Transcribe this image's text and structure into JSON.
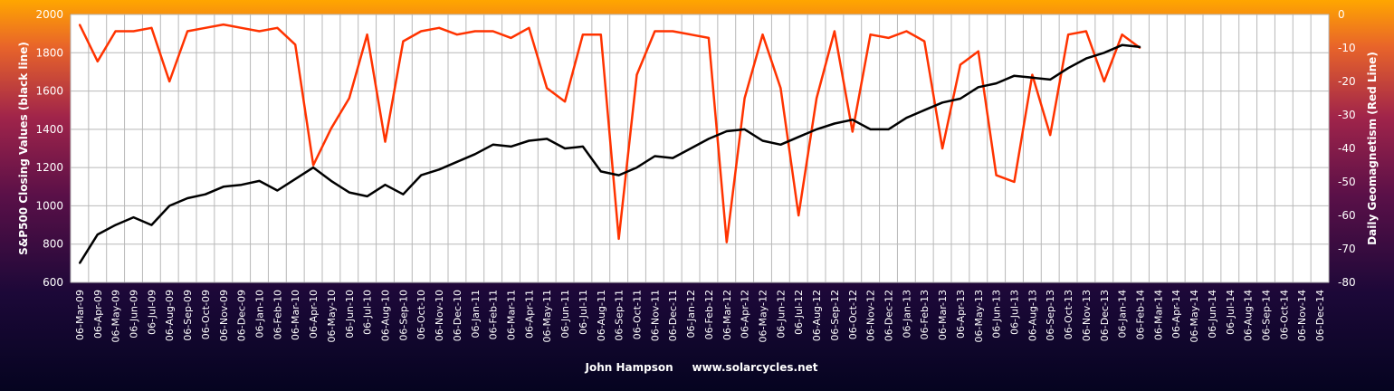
{
  "chart_data": {
    "type": "line",
    "title": "",
    "xlabel": "John Hampson     www.solarcycles.net",
    "ylabel": "S&P500 Closing Values (black line)",
    "y2label": "Daily Geomagnetism (Red Line)",
    "ylim": [
      600,
      2000
    ],
    "y_ticks": [
      600,
      800,
      1000,
      1200,
      1400,
      1600,
      1800,
      2000
    ],
    "y2lim": [
      -80,
      0
    ],
    "y2_ticks": [
      -80,
      -70,
      -60,
      -50,
      -40,
      -30,
      -20,
      -10,
      0
    ],
    "grid": true,
    "legend": "none",
    "x_categories": [
      "06-Mar-09",
      "06-Apr-09",
      "06-May-09",
      "06-Jun-09",
      "06-Jul-09",
      "06-Aug-09",
      "06-Sep-09",
      "06-Oct-09",
      "06-Nov-09",
      "06-Dec-09",
      "06-Jan-10",
      "06-Feb-10",
      "06-Mar-10",
      "06-Apr-10",
      "06-May-10",
      "06-Jun-10",
      "06-Jul-10",
      "06-Aug-10",
      "06-Sep-10",
      "06-Oct-10",
      "06-Nov-10",
      "06-Dec-10",
      "06-Jan-11",
      "06-Feb-11",
      "06-Mar-11",
      "06-Apr-11",
      "06-May-11",
      "06-Jun-11",
      "06-Jul-11",
      "06-Aug-11",
      "06-Sep-11",
      "06-Oct-11",
      "06-Nov-11",
      "06-Dec-11",
      "06-Jan-12",
      "06-Feb-12",
      "06-Mar-12",
      "06-Apr-12",
      "06-May-12",
      "06-Jun-12",
      "06-Jul-12",
      "06-Aug-12",
      "06-Sep-12",
      "06-Oct-12",
      "06-Nov-12",
      "06-Dec-12",
      "06-Jan-13",
      "06-Feb-13",
      "06-Mar-13",
      "06-Apr-13",
      "06-May-13",
      "06-Jun-13",
      "06-Jul-13",
      "06-Aug-13",
      "06-Sep-13",
      "06-Oct-13",
      "06-Nov-13",
      "06-Dec-13",
      "06-Jan-14",
      "06-Feb-14",
      "06-Mar-14",
      "06-Apr-14",
      "06-May-14",
      "06-Jun-14",
      "06-Jul-14",
      "06-Aug-14",
      "06-Sep-14",
      "06-Oct-14",
      "06-Nov-14",
      "06-Dec-14"
    ],
    "series": [
      {
        "axis": "left",
        "color": "#000000",
        "values": [
          700,
          850,
          900,
          940,
          900,
          1000,
          1040,
          1060,
          1100,
          1110,
          1130,
          1080,
          1140,
          1200,
          1130,
          1070,
          1050,
          1110,
          1060,
          1160,
          1190,
          1230,
          1270,
          1320,
          1310,
          1340,
          1350,
          1300,
          1310,
          1180,
          1160,
          1200,
          1260,
          1250,
          1300,
          1350,
          1390,
          1400,
          1340,
          1320,
          1360,
          1400,
          1430,
          1450,
          1400,
          1400,
          1460,
          1500,
          1540,
          1560,
          1620,
          1640,
          1680,
          1670,
          1660,
          1720,
          1770,
          1800,
          1840,
          1830
        ]
      },
      {
        "axis": "right",
        "color": "#ff3300",
        "values": [
          -3,
          -14,
          -5,
          -5,
          -4,
          -20,
          -5,
          -4,
          -3,
          -4,
          -5,
          -4,
          -9,
          -45,
          -34,
          -25,
          -6,
          -38,
          -8,
          -5,
          -4,
          -6,
          -5,
          -5,
          -7,
          -4,
          -22,
          -26,
          -6,
          -6,
          -67,
          -18,
          -5,
          -5,
          -6,
          -7,
          -68,
          -25,
          -6,
          -22,
          -60,
          -25,
          -5,
          -35,
          -6,
          -7,
          -5,
          -8,
          -40,
          -15,
          -11,
          -48,
          -50,
          -18,
          -36,
          -6,
          -5,
          -20,
          -6,
          -10
        ]
      }
    ]
  }
}
